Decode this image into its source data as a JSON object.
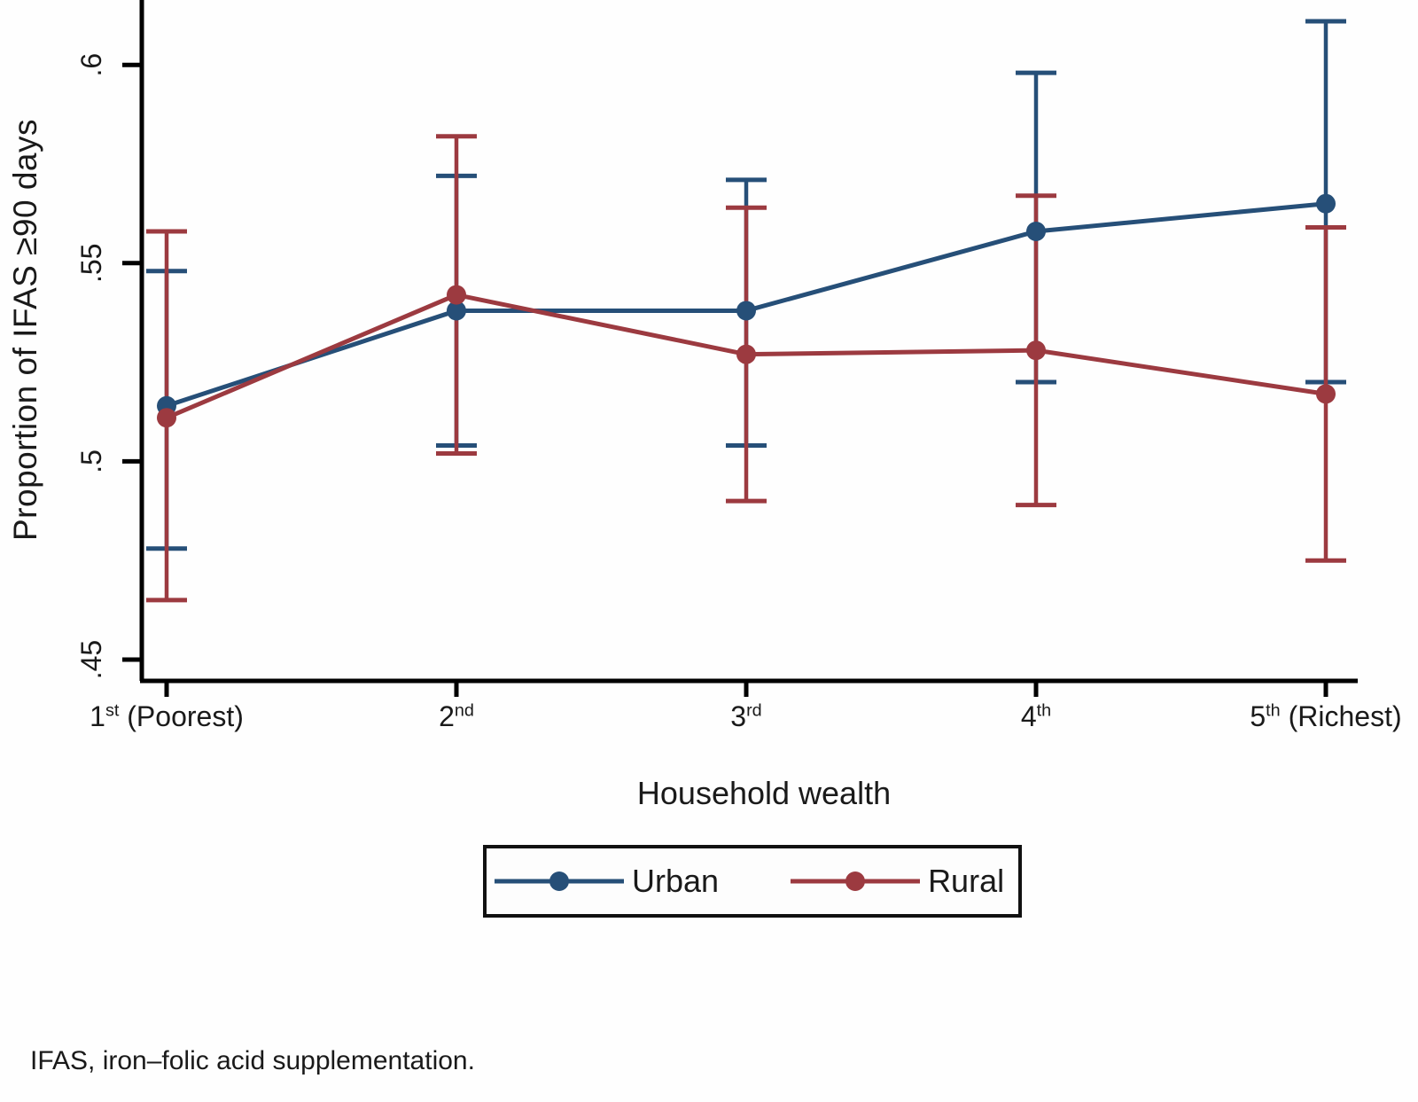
{
  "figure": {
    "footnote": "IFAS, iron–folic acid supplementation."
  },
  "chart_data": {
    "type": "line",
    "title": "",
    "xlabel": "Household wealth",
    "ylabel": "Proportion of IFAS ≥90 days",
    "grid": false,
    "error_bars": true,
    "legend_position": "bottom-center",
    "axis_color": "#000000",
    "x_categories": [
      {
        "num": "1",
        "sup": "st",
        "rest": " (Poorest)"
      },
      {
        "num": "2",
        "sup": "nd",
        "rest": ""
      },
      {
        "num": "3",
        "sup": "rd",
        "rest": ""
      },
      {
        "num": "4",
        "sup": "th",
        "rest": ""
      },
      {
        "num": "5",
        "sup": "th",
        "rest": " (Richest)"
      }
    ],
    "y_ticks": [
      {
        "label": ".45",
        "value": 0.45
      },
      {
        "label": ".5",
        "value": 0.5
      },
      {
        "label": ".55",
        "value": 0.55
      },
      {
        "label": ".6",
        "value": 0.6
      }
    ],
    "ylim": [
      0.444,
      0.617
    ],
    "series": [
      {
        "name": "Urban",
        "color": "#264f78",
        "values": [
          0.514,
          0.538,
          0.538,
          0.558,
          0.565
        ],
        "ci_low": [
          0.478,
          0.504,
          0.504,
          0.52,
          0.52
        ],
        "ci_high": [
          0.548,
          0.572,
          0.571,
          0.598,
          0.611
        ]
      },
      {
        "name": "Rural",
        "color": "#9c3a40",
        "values": [
          0.511,
          0.542,
          0.527,
          0.528,
          0.517
        ],
        "ci_low": [
          0.465,
          0.502,
          0.49,
          0.489,
          0.475
        ],
        "ci_high": [
          0.558,
          0.582,
          0.564,
          0.567,
          0.559
        ]
      }
    ]
  }
}
